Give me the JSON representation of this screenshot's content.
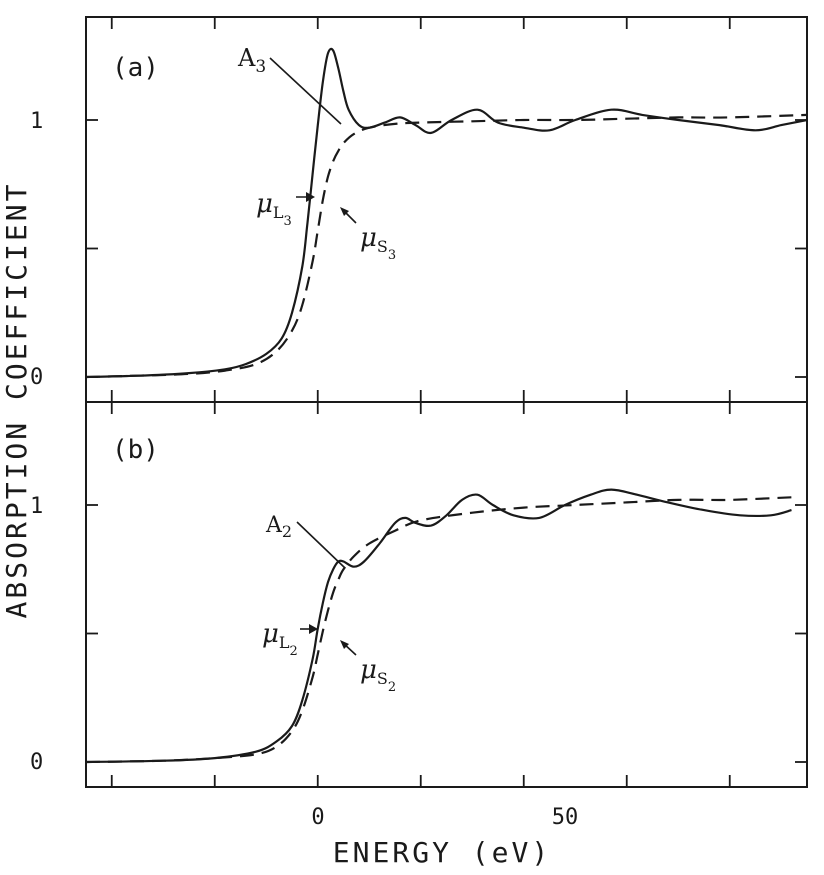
{
  "chart_data": [
    {
      "type": "line",
      "panel": "a",
      "panel_label": "(a)",
      "xlim": [
        -45,
        95
      ],
      "ylim": [
        -0.1,
        1.4
      ],
      "yticks": [
        0,
        1
      ],
      "ytick_labels": [
        "0",
        "1"
      ],
      "series": [
        {
          "name": "μL3 (measured)",
          "style": "solid",
          "x": [
            -45,
            -35,
            -25,
            -18,
            -14,
            -10,
            -7,
            -5,
            -3,
            -2,
            -1,
            0,
            1,
            2,
            3,
            4,
            5,
            6,
            8,
            10,
            13,
            16,
            19,
            22,
            26,
            31,
            35,
            40,
            45,
            50,
            57,
            63,
            70,
            78,
            85,
            90,
            95
          ],
          "values": [
            0.0,
            0.005,
            0.015,
            0.03,
            0.05,
            0.09,
            0.15,
            0.25,
            0.43,
            0.6,
            0.79,
            0.98,
            1.15,
            1.26,
            1.27,
            1.2,
            1.11,
            1.04,
            0.98,
            0.97,
            0.99,
            1.01,
            0.98,
            0.95,
            1.0,
            1.04,
            0.99,
            0.97,
            0.96,
            1.0,
            1.04,
            1.02,
            1.0,
            0.98,
            0.96,
            0.98,
            1.0
          ]
        },
        {
          "name": "μS3 (step)",
          "style": "dashed",
          "x": [
            -45,
            -35,
            -25,
            -18,
            -12,
            -8,
            -5,
            -3,
            -1,
            0,
            1,
            2,
            3,
            4,
            5,
            7,
            10,
            15,
            20,
            30,
            40,
            50,
            60,
            70,
            80,
            95
          ],
          "values": [
            0.0,
            0.005,
            0.012,
            0.025,
            0.05,
            0.1,
            0.18,
            0.28,
            0.45,
            0.57,
            0.69,
            0.78,
            0.84,
            0.88,
            0.91,
            0.945,
            0.97,
            0.985,
            0.99,
            0.995,
            1.0,
            1.0,
            1.005,
            1.01,
            1.01,
            1.02
          ]
        }
      ],
      "annotations": [
        "A3",
        "μL3",
        "μS3"
      ]
    },
    {
      "type": "line",
      "panel": "b",
      "panel_label": "(b)",
      "xlim": [
        -45,
        95
      ],
      "ylim": [
        -0.1,
        1.4
      ],
      "yticks": [
        0,
        1
      ],
      "ytick_labels": [
        "0",
        "1"
      ],
      "series": [
        {
          "name": "μL2 (measured)",
          "style": "solid",
          "x": [
            -45,
            -30,
            -20,
            -12,
            -8,
            -5,
            -3,
            -1,
            0,
            1,
            2,
            3,
            4,
            5,
            7,
            9,
            12,
            15,
            17,
            19,
            22,
            25,
            28,
            31,
            34,
            38,
            43,
            48,
            53,
            57,
            62,
            68,
            75,
            82,
            88,
            92
          ],
          "values": [
            0.0,
            0.005,
            0.015,
            0.04,
            0.08,
            0.14,
            0.24,
            0.4,
            0.52,
            0.62,
            0.7,
            0.75,
            0.78,
            0.78,
            0.76,
            0.78,
            0.85,
            0.93,
            0.95,
            0.93,
            0.92,
            0.96,
            1.02,
            1.04,
            1.0,
            0.96,
            0.95,
            1.0,
            1.04,
            1.06,
            1.04,
            1.01,
            0.98,
            0.96,
            0.96,
            0.98
          ]
        },
        {
          "name": "μS2 (step)",
          "style": "dashed",
          "x": [
            -45,
            -30,
            -20,
            -12,
            -8,
            -5,
            -3,
            -1,
            0,
            1,
            2,
            3,
            4,
            5,
            7,
            10,
            15,
            20,
            30,
            40,
            50,
            60,
            70,
            80,
            92
          ],
          "values": [
            0.0,
            0.005,
            0.015,
            0.03,
            0.06,
            0.12,
            0.2,
            0.33,
            0.42,
            0.51,
            0.59,
            0.66,
            0.71,
            0.75,
            0.8,
            0.85,
            0.9,
            0.94,
            0.97,
            0.99,
            1.0,
            1.01,
            1.02,
            1.02,
            1.03
          ]
        }
      ],
      "annotations": [
        "A2",
        "μL2",
        "μS2"
      ]
    }
  ],
  "axes": {
    "xlabel": "ENERGY (eV)",
    "ylabel": "ABSORPTION COEFFICIENT",
    "xticks": [
      -40,
      -20,
      0,
      20,
      40,
      60,
      80
    ],
    "xtick_labels": [
      "0",
      "50"
    ],
    "xtick_label_values": [
      0,
      50
    ]
  },
  "labels": {
    "a3_main": "A",
    "a3_sub": "3",
    "mu": "μ",
    "l3_sub": "L",
    "l3_subsub": "3",
    "s3_sub": "S",
    "s3_subsub": "3",
    "a2_main": "A",
    "a2_sub": "2",
    "l2_sub": "L",
    "l2_subsub": "2",
    "s2_sub": "S",
    "s2_subsub": "2"
  }
}
